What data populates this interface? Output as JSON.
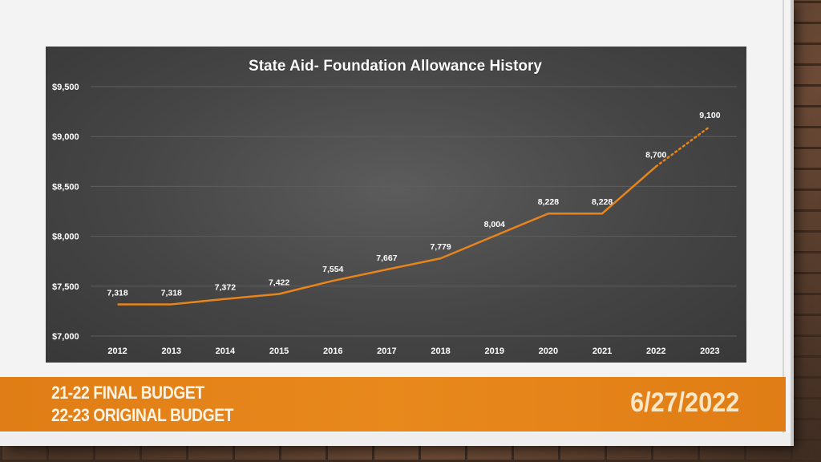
{
  "footer": {
    "line1": "21-22 FINAL BUDGET",
    "line2": "22-23 ORIGINAL BUDGET",
    "date": "6/27/2022"
  },
  "colors": {
    "line": "#e8841c",
    "text": "#ffffff",
    "footer": "#e8891c"
  },
  "chart_data": {
    "type": "line",
    "title": "State Aid- Foundation Allowance History",
    "xlabel": "",
    "ylabel": "",
    "ylim": [
      7000,
      9500
    ],
    "yticks": [
      7000,
      7500,
      8000,
      8500,
      9000,
      9500
    ],
    "ytick_labels": [
      "$7,000",
      "$7,500",
      "$8,000",
      "$8,500",
      "$9,000",
      "$9,500"
    ],
    "grid": true,
    "legend": "none",
    "categories": [
      "2012",
      "2013",
      "2014",
      "2015",
      "2016",
      "2017",
      "2018",
      "2019",
      "2020",
      "2021",
      "2022",
      "2023"
    ],
    "series": [
      {
        "values": [
          7318,
          7318,
          7372,
          7422,
          7554,
          7667,
          7779,
          8004,
          8228,
          8228,
          8700,
          9100
        ],
        "data_labels": [
          "7,318",
          "7,318",
          "7,372",
          "7,422",
          "7,554",
          "7,667",
          "7,779",
          "8,004",
          "8,228",
          "8,228",
          "8,700",
          "9,100"
        ],
        "projected_from_index": 10
      }
    ]
  }
}
